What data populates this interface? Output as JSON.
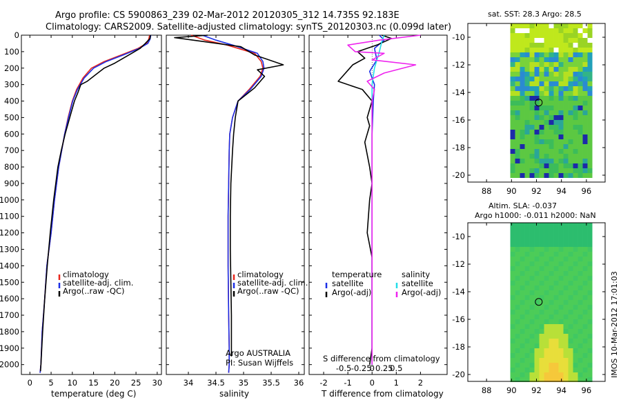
{
  "title": {
    "line1": "Argo profile: CS 5900863_239 02-Mar-2012 20120305_312 14.735S 92.183E",
    "line2": "Climatology: CARS2009. Satellite-adjusted climatology: synTS_20120303.nc (0.099d later)"
  },
  "colors": {
    "climatology": "#e8261c",
    "satellite": "#1a2ee6",
    "argo": "#000000",
    "salinity_satellite": "#22dde8",
    "salinity_argo": "#ee22ee"
  },
  "chart_data": [
    {
      "type": "line",
      "name": "temperature-panel",
      "xlabel": "temperature (deg C)",
      "ylabel": "",
      "xlim": [
        -2,
        31
      ],
      "ylim": [
        2060,
        0
      ],
      "xticks": [
        0,
        5,
        10,
        15,
        20,
        25,
        30
      ],
      "yticks": [
        0,
        100,
        200,
        300,
        400,
        500,
        600,
        700,
        800,
        900,
        1000,
        1100,
        1200,
        1300,
        1400,
        1500,
        1600,
        1700,
        1800,
        1900,
        2000
      ],
      "series": [
        {
          "name": "climatology",
          "color": "#e8261c",
          "x": [
            28.2,
            28.0,
            27.5,
            25.5,
            21.5,
            17.5,
            14.5,
            12.5,
            11.0,
            10.0,
            9.0,
            8.2,
            7.5,
            6.8,
            5.8,
            5.0,
            4.5,
            4.0,
            3.5,
            3.2,
            2.9,
            2.6,
            2.4
          ],
          "y": [
            0,
            25,
            50,
            80,
            120,
            160,
            200,
            260,
            330,
            400,
            500,
            600,
            700,
            800,
            1000,
            1200,
            1300,
            1400,
            1600,
            1700,
            1800,
            2000,
            2050
          ]
        },
        {
          "name": "satellite-adj. clim.",
          "color": "#1a2ee6",
          "x": [
            28.5,
            28.3,
            27.8,
            25.8,
            22.0,
            18.0,
            15.0,
            12.8,
            11.2,
            10.1,
            9.1,
            8.2,
            7.5,
            6.8,
            5.8,
            5.0,
            4.5,
            4.0,
            3.5,
            3.2,
            2.9,
            2.6,
            2.4
          ],
          "y": [
            0,
            25,
            50,
            80,
            120,
            160,
            200,
            260,
            330,
            400,
            500,
            600,
            700,
            800,
            1000,
            1200,
            1300,
            1400,
            1600,
            1700,
            1800,
            2000,
            2050
          ]
        },
        {
          "name": "Argo(..raw -QC)",
          "color": "#000000",
          "x": [
            28.4,
            28.3,
            27.2,
            26.0,
            24.0,
            22.0,
            20.0,
            17.5,
            15.5,
            13.5,
            12.0,
            11.3,
            10.5,
            9.4,
            8.3,
            7.4,
            6.6,
            5.6,
            4.8,
            4.1,
            3.5,
            3.0,
            2.6,
            2.5
          ],
          "y": [
            0,
            20,
            50,
            80,
            110,
            140,
            170,
            200,
            240,
            280,
            300,
            350,
            400,
            500,
            600,
            700,
            800,
            1000,
            1200,
            1400,
            1600,
            1800,
            2000,
            2040
          ]
        }
      ],
      "legend": [
        "climatology",
        "satellite-adj. clim.",
        "Argo(..raw -QC)"
      ]
    },
    {
      "type": "line",
      "name": "salinity-panel",
      "xlabel": "salinity",
      "xlim": [
        33.6,
        36.1
      ],
      "ylim": [
        2060,
        0
      ],
      "xticks": [
        34,
        34.5,
        35,
        35.5,
        36
      ],
      "series": [
        {
          "name": "climatology",
          "color": "#e8261c",
          "x": [
            34.05,
            34.3,
            34.7,
            35.2,
            35.32,
            35.35,
            35.3,
            35.1,
            34.9,
            34.8,
            34.75,
            34.74,
            34.73,
            34.72,
            34.72,
            34.73,
            34.74,
            34.74,
            34.73
          ],
          "y": [
            0,
            30,
            60,
            110,
            160,
            200,
            250,
            330,
            400,
            500,
            600,
            700,
            900,
            1100,
            1400,
            1700,
            1900,
            2000,
            2050
          ]
        },
        {
          "name": "satellite-adj. clim.",
          "color": "#1a2ee6",
          "x": [
            34.25,
            34.5,
            34.8,
            35.25,
            35.35,
            35.37,
            35.32,
            35.12,
            34.9,
            34.8,
            34.75,
            34.74,
            34.73,
            34.72,
            34.72,
            34.73,
            34.74,
            34.74,
            34.73
          ],
          "y": [
            0,
            30,
            60,
            110,
            160,
            200,
            250,
            330,
            400,
            500,
            600,
            700,
            900,
            1100,
            1400,
            1700,
            1900,
            2000,
            2050
          ]
        },
        {
          "name": "Argo(..raw -QC)",
          "color": "#000000",
          "x": [
            34.35,
            33.75,
            34.2,
            34.95,
            35.2,
            35.72,
            35.25,
            35.38,
            35.2,
            34.9,
            34.85,
            34.82,
            34.8,
            34.77,
            34.76,
            34.76,
            34.77,
            34.78,
            34.78,
            34.78
          ],
          "y": [
            0,
            15,
            35,
            70,
            120,
            180,
            210,
            250,
            320,
            400,
            500,
            600,
            700,
            900,
            1100,
            1300,
            1500,
            1700,
            1800,
            1950
          ]
        }
      ],
      "legend": [
        "climatology",
        "satellite-adj. clim.",
        "Argo(..raw -QC)"
      ],
      "annotations": [
        "Argo AUSTRALIA",
        "PI: Susan Wijffels"
      ]
    },
    {
      "type": "line",
      "name": "difference-panel",
      "xlabel": "T difference from climatology",
      "xlabel_top": "S difference from climatology",
      "xlim": [
        -2.6,
        3.1
      ],
      "ylim": [
        2060,
        0
      ],
      "xticks": [
        -2,
        -1,
        0,
        1,
        2
      ],
      "xticks_s": [
        "-0.5",
        "-0.25",
        "0",
        "0.25",
        "0.5"
      ],
      "series": [
        {
          "name": "temperature satellite",
          "color": "#1a2ee6",
          "x": [
            0.3,
            0.5,
            0.1,
            0.2,
            -0.1,
            0.1,
            0.05,
            0.0,
            0.0,
            0.0,
            0.0,
            0.0
          ],
          "y": [
            0,
            30,
            80,
            150,
            220,
            300,
            400,
            600,
            900,
            1300,
            1700,
            2000
          ]
        },
        {
          "name": "temperature Argo(-adj)",
          "color": "#000000",
          "x": [
            0.4,
            0.8,
            0.2,
            -0.6,
            -0.3,
            -0.8,
            -1.4,
            -0.4,
            0.0,
            -0.1,
            -0.2,
            -0.1,
            -0.3,
            -0.1,
            0.0,
            -0.1,
            -0.2,
            0.0,
            0.0,
            0.0,
            0.0,
            -0.1
          ],
          "y": [
            0,
            20,
            60,
            100,
            140,
            180,
            280,
            330,
            400,
            450,
            500,
            550,
            650,
            800,
            900,
            1000,
            1200,
            1350,
            1500,
            1700,
            1900,
            2000
          ]
        },
        {
          "name": "salinity satellite",
          "color": "#22dde8",
          "x": [
            0.5,
            0.4,
            0.3,
            0.1,
            0.0,
            0.0,
            0.0,
            0.0,
            0.0,
            0.0,
            0.0,
            0.0
          ],
          "y": [
            0,
            40,
            100,
            200,
            300,
            400,
            600,
            900,
            1200,
            1500,
            1800,
            2000
          ]
        },
        {
          "name": "salinity Argo(-adj)",
          "color": "#ee22ee",
          "x": [
            2.0,
            0.3,
            -1.0,
            -0.7,
            0.5,
            0.0,
            1.8,
            0.5,
            -0.2,
            0.1,
            0.0,
            0.0,
            0.0,
            0.0,
            0.0
          ],
          "y": [
            0,
            30,
            60,
            100,
            110,
            150,
            180,
            230,
            280,
            330,
            400,
            600,
            1000,
            1500,
            2000
          ]
        }
      ],
      "legend_titles": [
        "temperature",
        "salinity"
      ],
      "legend": [
        "satellite",
        "Argo(-adj)",
        "satellite",
        "Argo(-adj)"
      ]
    }
  ],
  "map_top": {
    "title": "sat. SST: 28.3  Argo: 28.5",
    "xticks": [
      "88",
      "90",
      "92",
      "94",
      "96"
    ],
    "yticks": [
      "-10",
      "-12",
      "-14",
      "-16",
      "-18",
      "-20"
    ],
    "xlim": [
      86.5,
      97.5
    ],
    "ylim": [
      -20.5,
      -9
    ],
    "argo_position": {
      "lon": 92.183,
      "lat": -14.735
    }
  },
  "map_bottom": {
    "title_line1": "Altim. SLA: -0.037",
    "title_line2": "Argo h1000: -0.011  h2000: NaN",
    "xticks": [
      "88",
      "90",
      "92",
      "94",
      "96"
    ],
    "yticks": [
      "-10",
      "-12",
      "-14",
      "-16",
      "-18",
      "-20"
    ],
    "xlim": [
      86.5,
      97.5
    ],
    "ylim": [
      -20.5,
      -9
    ],
    "argo_position": {
      "lon": 92.183,
      "lat": -14.735
    }
  },
  "footer_stamp": "IMOS 10-Mar-2012 17:01:03"
}
